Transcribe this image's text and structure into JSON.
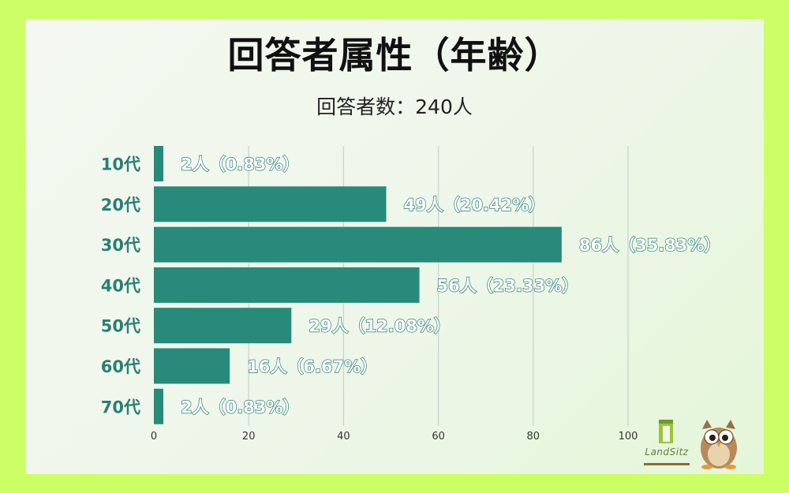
{
  "header": {
    "title": "回答者属性（年齢）",
    "subtitle": "回答者数：240人"
  },
  "brand": {
    "name": "LandSitz",
    "logo_icon": "building-logo-icon",
    "mascot_icon": "owl-mascot-icon"
  },
  "colors": {
    "bar": "#278a7a",
    "category_label": "#2a7f73",
    "background": "#ccff66"
  },
  "chart_data": {
    "type": "bar",
    "orientation": "horizontal",
    "categories": [
      "10代",
      "20代",
      "30代",
      "40代",
      "50代",
      "60代",
      "70代"
    ],
    "values": [
      2,
      49,
      86,
      56,
      29,
      16,
      2
    ],
    "labels": [
      "2人（0.83%）",
      "49人（20.42%）",
      "86人（35.83%）",
      "56人（23.33%）",
      "29人（12.08%）",
      "16人（6.67%）",
      "2人（0.83%）"
    ],
    "xticks": [
      "0",
      "20",
      "40",
      "60",
      "80",
      "100"
    ],
    "xlim": [
      0,
      100
    ],
    "title": "回答者属性（年齢）",
    "subtitle": "回答者数：240人",
    "xlabel": "",
    "ylabel": "",
    "grid": "vertical",
    "legend": "none"
  }
}
